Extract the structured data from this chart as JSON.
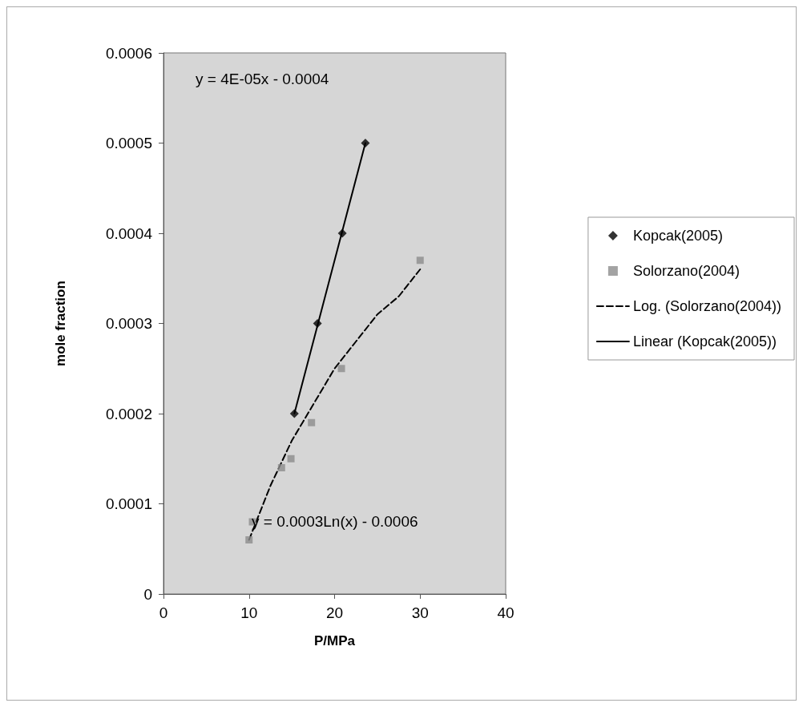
{
  "chart_data": {
    "type": "scatter",
    "xlabel": "P/MPa",
    "ylabel": "mole fraction",
    "xlim": [
      0,
      40
    ],
    "xticks": [
      0,
      10,
      20,
      30,
      40
    ],
    "ylim": [
      0,
      0.0006
    ],
    "yticks": [
      0,
      0.0001,
      0.0002,
      0.0003,
      0.0004,
      0.0005,
      0.0006
    ],
    "grid": false,
    "legend": "right",
    "series": [
      {
        "name": "Kopcak(2005)",
        "marker": "diamond",
        "color": "#000000",
        "x": [
          15.3,
          18.0,
          20.9,
          23.6
        ],
        "values": [
          0.0002,
          0.0003,
          0.0004,
          0.0005
        ]
      },
      {
        "name": "Solorzano(2004)",
        "marker": "square",
        "color": "#8c8c8c",
        "x": [
          10.0,
          10.4,
          13.8,
          14.9,
          17.3,
          20.8,
          30.0
        ],
        "values": [
          6e-05,
          8e-05,
          0.00014,
          0.00015,
          0.00019,
          0.00025,
          0.00037
        ]
      },
      {
        "name": "Log. (Solorzano(2004))",
        "type": "line",
        "marker": "none",
        "line_style": "dashed",
        "color": "#000000",
        "x": [
          10,
          12.5,
          15,
          17.5,
          20,
          22.5,
          25,
          27.5,
          30
        ],
        "values": [
          6e-05,
          0.00012,
          0.00017,
          0.00021,
          0.00025,
          0.00028,
          0.00031,
          0.00033,
          0.00036
        ]
      },
      {
        "name": "Linear (Kopcak(2005))",
        "type": "line",
        "marker": "none",
        "line_style": "solid",
        "color": "#000000",
        "x": [
          15.3,
          23.6
        ],
        "values": [
          0.0002,
          0.0005
        ]
      }
    ],
    "annotations": [
      "y = 4E-05x - 0.0004",
      "y = 0.0003Ln(x) - 0.0006"
    ]
  }
}
